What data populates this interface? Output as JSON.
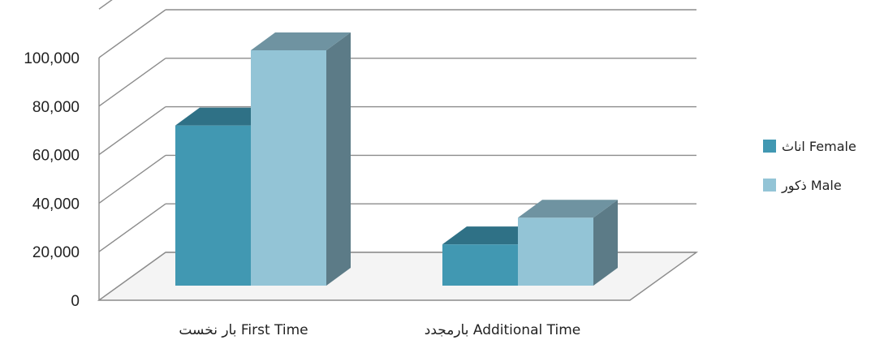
{
  "chart_data": {
    "type": "bar",
    "title": "",
    "xlabel": "",
    "ylabel": "",
    "categories": [
      "بار نخست First Time",
      "بارمجدد Additional Time"
    ],
    "series": [
      {
        "name": "اناث Female",
        "values": [
          66000,
          17000
        ],
        "color": "#4198b2",
        "top_color": "#2f7186",
        "side_color": "#2f7186"
      },
      {
        "name": "ذکور  Male",
        "values": [
          97000,
          28000
        ],
        "color": "#93c4d6",
        "top_color": "#6f93a1",
        "side_color": "#5c7b87"
      }
    ],
    "ylim": [
      0,
      100000
    ],
    "y_ticks": [
      "0",
      "20,000",
      "40,000",
      "60,000",
      "80,000",
      "100,000"
    ],
    "y_tick_values": [
      0,
      20000,
      40000,
      60000,
      80000,
      100000
    ],
    "grid": true,
    "legend_position": "right",
    "style": "3d-clustered-column"
  }
}
